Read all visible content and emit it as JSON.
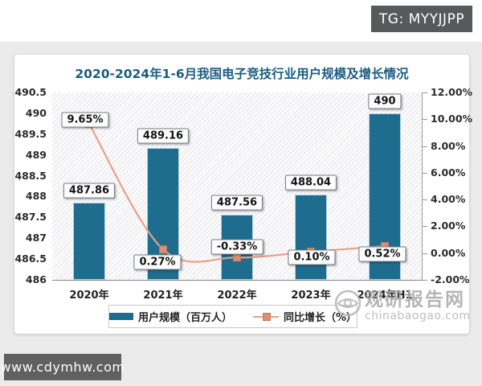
{
  "page": {
    "tg_badge": "TG: MYYJJPP",
    "site_badge": "www.cdymhw.com",
    "watermark": {
      "brand": "观研报告网",
      "domain": "chinabaogao.com"
    }
  },
  "chart_data": {
    "type": "combo",
    "title": "2020-2024年1-6月我国电子竞技行业用户规模及增长情况",
    "categories": [
      "2020年",
      "2021年",
      "2022年",
      "2023年",
      "2024年H1"
    ],
    "series": [
      {
        "name": "用户规模（百万人）",
        "type": "bar",
        "axis": "left",
        "values": [
          487.86,
          489.16,
          487.56,
          488.04,
          490
        ],
        "labels": [
          "487.86",
          "489.16",
          "487.56",
          "488.04",
          "490"
        ],
        "color": "#1e6d8e"
      },
      {
        "name": "同比增长（%）",
        "type": "line",
        "axis": "right",
        "values": [
          9.65,
          0.27,
          -0.33,
          0.1,
          0.52
        ],
        "labels": [
          "9.65%",
          "0.27%",
          "-0.33%",
          "0.10%",
          "0.52%"
        ],
        "color": "#e8a086",
        "marker_color": "#dd8e6e"
      }
    ],
    "left_axis": {
      "min": 486,
      "max": 490.5,
      "ticks": [
        "490.5",
        "490",
        "489.5",
        "489",
        "488.5",
        "488",
        "487.5",
        "487",
        "486.5",
        "486"
      ]
    },
    "right_axis": {
      "min": -2,
      "max": 12,
      "ticks": [
        "12.00%",
        "10.00%",
        "8.00%",
        "6.00%",
        "4.00%",
        "2.00%",
        "0.00%",
        "-2.00%"
      ]
    },
    "legend": {
      "position": "bottom"
    },
    "grid": false,
    "plot_background": "diagonal-hatch"
  }
}
